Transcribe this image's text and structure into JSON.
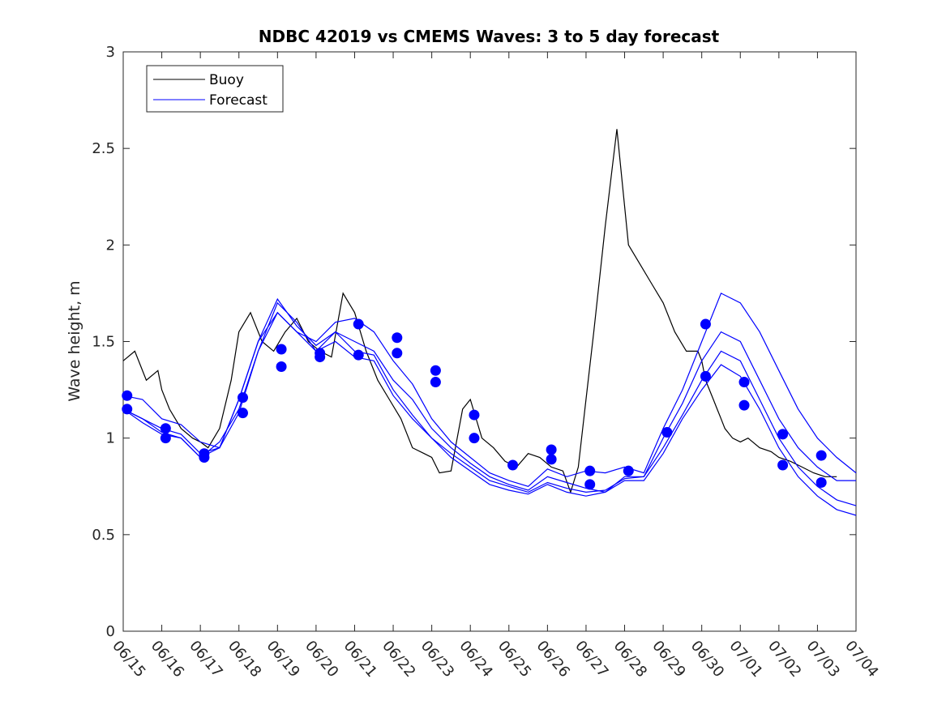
{
  "chart_data": {
    "type": "line",
    "title": "NDBC 42019 vs CMEMS Waves: 3 to 5 day forecast",
    "xlabel": "",
    "ylabel": "Wave height, m",
    "xlim": [
      "06/15",
      "07/04"
    ],
    "ylim": [
      0,
      3
    ],
    "x_ticks": [
      "06/15",
      "06/16",
      "06/17",
      "06/18",
      "06/19",
      "06/20",
      "06/21",
      "06/22",
      "06/23",
      "06/24",
      "06/25",
      "06/26",
      "06/27",
      "06/28",
      "06/29",
      "06/30",
      "07/01",
      "07/02",
      "07/03",
      "07/04"
    ],
    "y_ticks": [
      "0",
      "0.5",
      "1",
      "1.5",
      "2",
      "2.5",
      "3"
    ],
    "grid": false,
    "legend": {
      "position": "top-left",
      "entries": [
        {
          "label": "Buoy",
          "color": "#000000"
        },
        {
          "label": "Forecast",
          "color": "#0000ff"
        }
      ]
    },
    "colors": {
      "buoy": "#000000",
      "forecast": "#0000ff"
    },
    "series": [
      {
        "name": "Buoy",
        "style": "line",
        "color": "#000000",
        "x": [
          0,
          0.3,
          0.6,
          0.9,
          1.0,
          1.2,
          1.5,
          1.8,
          2.0,
          2.2,
          2.5,
          2.8,
          3.0,
          3.3,
          3.6,
          3.9,
          4.2,
          4.5,
          4.8,
          5.1,
          5.4,
          5.7,
          6.0,
          6.3,
          6.6,
          6.9,
          7.2,
          7.5,
          7.8,
          8.0,
          8.2,
          8.5,
          8.8,
          9.0,
          9.3,
          9.6,
          9.9,
          10.2,
          10.5,
          10.8,
          11.1,
          11.4,
          11.6,
          11.8,
          12.0,
          12.2,
          12.5,
          12.8,
          13.1,
          13.4,
          13.7,
          14.0,
          14.3,
          14.6,
          14.9,
          15.0,
          15.1,
          15.2,
          15.3,
          15.4,
          15.5,
          15.6,
          15.8,
          16.0,
          16.2,
          16.5,
          16.8,
          17.0,
          17.3,
          17.6,
          17.9,
          18.2,
          18.5
        ],
        "y": [
          1.4,
          1.45,
          1.3,
          1.35,
          1.25,
          1.15,
          1.05,
          1.0,
          0.98,
          0.95,
          1.05,
          1.3,
          1.55,
          1.65,
          1.5,
          1.45,
          1.55,
          1.62,
          1.5,
          1.45,
          1.42,
          1.75,
          1.65,
          1.45,
          1.3,
          1.2,
          1.1,
          0.95,
          0.92,
          0.9,
          0.82,
          0.83,
          1.15,
          1.2,
          1.0,
          0.95,
          0.88,
          0.85,
          0.92,
          0.9,
          0.85,
          0.83,
          0.72,
          0.85,
          1.2,
          1.55,
          2.1,
          2.6,
          2.0,
          1.9,
          1.8,
          1.7,
          1.55,
          1.45,
          1.45,
          1.4,
          1.3,
          1.25,
          1.2,
          1.15,
          1.1,
          1.05,
          1.0,
          0.98,
          1.0,
          0.95,
          0.93,
          0.9,
          0.88,
          0.85,
          0.82,
          0.8,
          0.8
        ]
      },
      {
        "name": "Forecast 1",
        "style": "line",
        "color": "#0000ff",
        "x": [
          0,
          0.5,
          1.0,
          1.5,
          2.0,
          2.5,
          3.0,
          3.5,
          4.0,
          4.5,
          5.0,
          5.5,
          6.0,
          6.5,
          7.0,
          7.5,
          8.0,
          8.5,
          9.0,
          9.5,
          10.0,
          10.5,
          11.0,
          11.5,
          12.0,
          12.5,
          13.0,
          13.5,
          14.0,
          14.5,
          15.0,
          15.5,
          16.0,
          16.5,
          17.0,
          17.5,
          18.0,
          18.5,
          19.0
        ],
        "y": [
          1.22,
          1.2,
          1.1,
          1.07,
          0.98,
          0.95,
          1.2,
          1.5,
          1.65,
          1.55,
          1.5,
          1.6,
          1.62,
          1.55,
          1.4,
          1.28,
          1.1,
          0.98,
          0.9,
          0.82,
          0.78,
          0.75,
          0.84,
          0.8,
          0.83,
          0.82,
          0.85,
          0.82,
          1.05,
          1.25,
          1.5,
          1.75,
          1.7,
          1.55,
          1.35,
          1.15,
          1.0,
          0.9,
          0.82
        ]
      },
      {
        "name": "Forecast 2",
        "style": "line",
        "color": "#0000ff",
        "x": [
          0,
          0.5,
          1.0,
          1.5,
          2.0,
          2.5,
          3.0,
          3.5,
          4.0,
          4.5,
          5.0,
          5.5,
          6.0,
          6.5,
          7.0,
          7.5,
          8.0,
          8.5,
          9.0,
          9.5,
          10.0,
          10.5,
          11.0,
          11.5,
          12.0,
          12.5,
          13.0,
          13.5,
          14.0,
          14.5,
          15.0,
          15.5,
          16.0,
          16.5,
          17.0,
          17.5,
          18.0,
          18.5,
          19.0
        ],
        "y": [
          1.15,
          1.1,
          1.05,
          1.02,
          0.92,
          0.95,
          1.13,
          1.45,
          1.7,
          1.6,
          1.45,
          1.55,
          1.5,
          1.45,
          1.3,
          1.2,
          1.05,
          0.95,
          0.87,
          0.8,
          0.76,
          0.73,
          0.8,
          0.77,
          0.74,
          0.72,
          0.8,
          0.8,
          1.0,
          1.18,
          1.4,
          1.55,
          1.5,
          1.3,
          1.1,
          0.95,
          0.85,
          0.78,
          0.78
        ]
      },
      {
        "name": "Forecast 3",
        "style": "line",
        "color": "#0000ff",
        "x": [
          0,
          0.5,
          1.0,
          1.5,
          2.0,
          2.5,
          3.0,
          3.5,
          4.0,
          4.5,
          5.0,
          5.5,
          6.0,
          6.5,
          7.0,
          7.5,
          8.0,
          8.5,
          9.0,
          9.5,
          10.0,
          10.5,
          11.0,
          11.5,
          12.0,
          12.5,
          13.0,
          13.5,
          14.0,
          14.5,
          15.0,
          15.5,
          16.0,
          16.5,
          17.0,
          17.5,
          18.0,
          18.5,
          19.0
        ],
        "y": [
          1.15,
          1.08,
          1.02,
          1.0,
          0.9,
          0.95,
          1.2,
          1.5,
          1.72,
          1.58,
          1.48,
          1.55,
          1.45,
          1.43,
          1.25,
          1.12,
          1.0,
          0.92,
          0.85,
          0.78,
          0.75,
          0.72,
          0.77,
          0.74,
          0.72,
          0.73,
          0.79,
          0.8,
          0.95,
          1.12,
          1.3,
          1.45,
          1.4,
          1.2,
          1.0,
          0.85,
          0.75,
          0.68,
          0.65
        ]
      },
      {
        "name": "Forecast 4",
        "style": "line",
        "color": "#0000ff",
        "x": [
          0,
          0.5,
          1.0,
          1.5,
          2.0,
          2.5,
          3.0,
          3.5,
          4.0,
          4.5,
          5.0,
          5.5,
          6.0,
          6.5,
          7.0,
          7.5,
          8.0,
          8.5,
          9.0,
          9.5,
          10.0,
          10.5,
          11.0,
          11.5,
          12.0,
          12.5,
          13.0,
          13.5,
          14.0,
          14.5,
          15.0,
          15.5,
          16.0,
          16.5,
          17.0,
          17.5,
          18.0,
          18.5,
          19.0
        ],
        "y": [
          1.15,
          1.1,
          1.03,
          1.0,
          0.9,
          0.98,
          1.15,
          1.45,
          1.65,
          1.55,
          1.45,
          1.5,
          1.42,
          1.4,
          1.22,
          1.1,
          1.0,
          0.9,
          0.83,
          0.76,
          0.73,
          0.71,
          0.76,
          0.72,
          0.7,
          0.72,
          0.78,
          0.78,
          0.92,
          1.1,
          1.25,
          1.38,
          1.32,
          1.15,
          0.95,
          0.8,
          0.7,
          0.63,
          0.6
        ]
      },
      {
        "name": "Forecast points",
        "style": "markers",
        "color": "#0000ff",
        "x": [
          0.1,
          0.1,
          1.1,
          1.1,
          2.1,
          2.1,
          3.1,
          3.1,
          4.1,
          4.1,
          5.1,
          5.1,
          6.1,
          6.1,
          7.1,
          7.1,
          8.1,
          8.1,
          9.1,
          9.1,
          10.1,
          11.1,
          11.1,
          12.1,
          12.1,
          13.1,
          14.1,
          15.1,
          15.1,
          16.1,
          16.1,
          17.1,
          17.1,
          18.1,
          18.1
        ],
        "y": [
          1.22,
          1.15,
          1.05,
          1.0,
          0.92,
          0.9,
          1.21,
          1.13,
          1.46,
          1.37,
          1.44,
          1.42,
          1.59,
          1.43,
          1.52,
          1.44,
          1.35,
          1.29,
          1.12,
          1.0,
          0.86,
          0.94,
          0.89,
          0.83,
          0.76,
          0.83,
          1.03,
          1.59,
          1.32,
          1.29,
          1.17,
          1.02,
          0.86,
          0.91,
          0.77
        ]
      }
    ]
  }
}
